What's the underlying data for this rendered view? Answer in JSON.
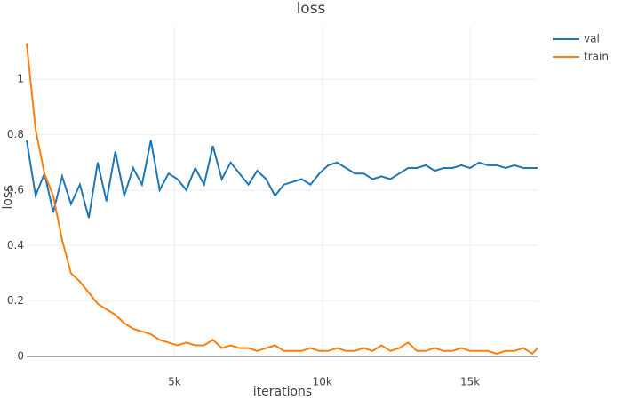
{
  "chart_data": {
    "type": "line",
    "title": "loss",
    "x_label": "iterations",
    "y_label": "loss",
    "x": [
      0,
      300,
      600,
      900,
      1200,
      1500,
      1800,
      2100,
      2400,
      2700,
      3000,
      3300,
      3600,
      3900,
      4200,
      4500,
      4800,
      5100,
      5400,
      5700,
      6000,
      6300,
      6600,
      6900,
      7200,
      7500,
      7800,
      8100,
      8400,
      8700,
      9000,
      9300,
      9600,
      9900,
      10200,
      10500,
      10800,
      11100,
      11400,
      11700,
      12000,
      12300,
      12600,
      12900,
      13200,
      13500,
      13800,
      14100,
      14400,
      14700,
      15000,
      15300,
      15600,
      15900,
      16200,
      16500,
      16800,
      17100,
      17280
    ],
    "series": [
      {
        "name": "val",
        "color": "#1f77b4",
        "values": [
          0.78,
          0.58,
          0.66,
          0.52,
          0.65,
          0.55,
          0.62,
          0.5,
          0.7,
          0.56,
          0.74,
          0.58,
          0.68,
          0.62,
          0.78,
          0.6,
          0.66,
          0.64,
          0.6,
          0.68,
          0.62,
          0.76,
          0.64,
          0.7,
          0.66,
          0.62,
          0.67,
          0.64,
          0.58,
          0.62,
          0.63,
          0.64,
          0.62,
          0.66,
          0.69,
          0.7,
          0.68,
          0.66,
          0.66,
          0.64,
          0.65,
          0.64,
          0.66,
          0.68,
          0.68,
          0.69,
          0.67,
          0.68,
          0.68,
          0.69,
          0.68,
          0.7,
          0.69,
          0.69,
          0.68,
          0.69,
          0.68,
          0.68,
          0.68
        ]
      },
      {
        "name": "train",
        "color": "#ff7f0e",
        "values": [
          1.13,
          0.82,
          0.66,
          0.58,
          0.42,
          0.3,
          0.27,
          0.23,
          0.19,
          0.17,
          0.15,
          0.12,
          0.1,
          0.09,
          0.08,
          0.06,
          0.05,
          0.04,
          0.05,
          0.04,
          0.04,
          0.06,
          0.03,
          0.04,
          0.03,
          0.03,
          0.02,
          0.03,
          0.04,
          0.02,
          0.02,
          0.02,
          0.03,
          0.02,
          0.02,
          0.03,
          0.02,
          0.02,
          0.03,
          0.02,
          0.04,
          0.02,
          0.03,
          0.05,
          0.02,
          0.02,
          0.03,
          0.02,
          0.02,
          0.03,
          0.02,
          0.02,
          0.02,
          0.01,
          0.02,
          0.02,
          0.03,
          0.01,
          0.03
        ]
      }
    ],
    "xlim": [
      0,
      17280
    ],
    "ylim": [
      0,
      1.19
    ],
    "xticks": [
      {
        "value": 5000,
        "label": "5k"
      },
      {
        "value": 10000,
        "label": "10k"
      },
      {
        "value": 15000,
        "label": "15k"
      }
    ],
    "yticks": [
      0,
      0.2,
      0.4,
      0.6,
      0.8,
      1
    ],
    "grid": true
  }
}
